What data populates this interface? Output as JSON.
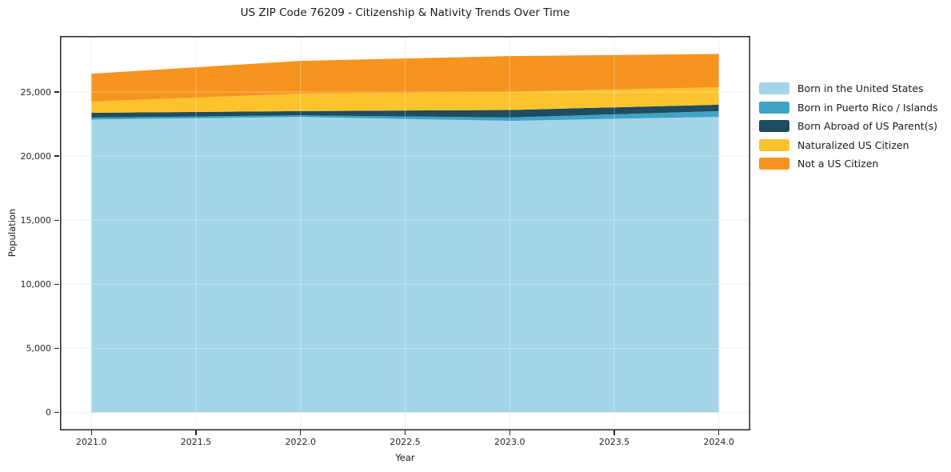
{
  "title": "US ZIP Code 76209 - Citizenship & Nativity Trends Over Time",
  "chart_data": {
    "type": "area",
    "stacked": true,
    "title": "US ZIP Code 76209 - Citizenship & Nativity Trends Over Time",
    "xlabel": "Year",
    "ylabel": "Population",
    "x": [
      2021,
      2022,
      2023,
      2024
    ],
    "series": [
      {
        "name": "Born in the United States",
        "color": "#A4D4E8",
        "values": [
          22850,
          23050,
          22750,
          23070
        ]
      },
      {
        "name": "Born in Puerto Rico / Islands",
        "color": "#3DA4C6",
        "values": [
          150,
          130,
          260,
          440
        ]
      },
      {
        "name": "Born Abroad of US Parent(s)",
        "color": "#1F4C5F",
        "values": [
          380,
          330,
          590,
          500
        ]
      },
      {
        "name": "Naturalized US Citizen",
        "color": "#FDC32D",
        "values": [
          870,
          1370,
          1400,
          1370
        ]
      },
      {
        "name": "Not a US Citizen",
        "color": "#F6941F",
        "values": [
          2180,
          2550,
          2800,
          2590
        ]
      }
    ],
    "totals": [
      26430,
      27430,
      27800,
      27970
    ],
    "xlim": [
      2020.85,
      2024.15
    ],
    "ylim": [
      -1400,
      29370
    ],
    "xticks": [
      2021.0,
      2021.5,
      2022.0,
      2022.5,
      2023.0,
      2023.5,
      2024.0
    ],
    "xtick_labels": [
      "2021.0",
      "2021.5",
      "2022.0",
      "2022.5",
      "2023.0",
      "2023.5",
      "2024.0"
    ],
    "yticks": [
      0,
      5000,
      10000,
      15000,
      20000,
      25000
    ],
    "ytick_labels": [
      "0",
      "5,000",
      "10,000",
      "15,000",
      "20,000",
      "25,000"
    ],
    "grid": true,
    "legend_position": "right",
    "grid_color": "#ececec",
    "spine_color": "#262626"
  }
}
